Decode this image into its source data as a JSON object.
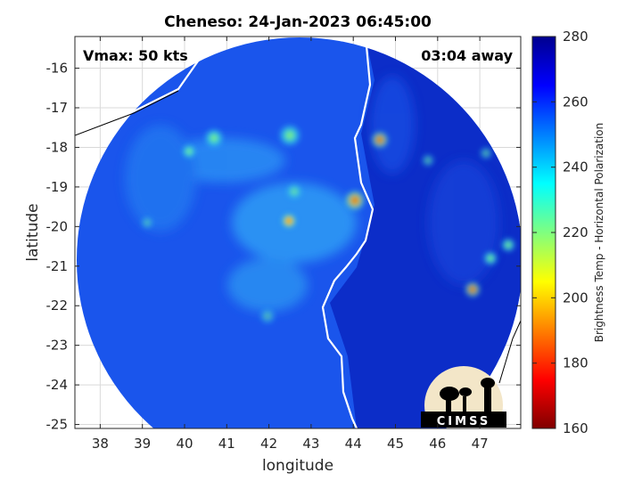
{
  "chart_data": {
    "type": "heatmap",
    "title": "Cheneso: 24-Jan-2023 06:45:00",
    "xlabel": "longitude",
    "ylabel": "latitude",
    "xlim": [
      37.4,
      47.97
    ],
    "ylim": [
      -25.1,
      -15.2
    ],
    "xticks": [
      38,
      39,
      40,
      41,
      42,
      43,
      44,
      45,
      46,
      47
    ],
    "yticks": [
      -16,
      -17,
      -18,
      -19,
      -20,
      -21,
      -22,
      -23,
      -24,
      -25
    ],
    "grid": true,
    "annotations": {
      "vmax": "Vmax: 50 kts",
      "time_away": "03:04 away"
    },
    "storm_center": {
      "lon": 42.4,
      "lat": -19.8
    },
    "colorbar": {
      "label": "Brightness Temp - Horizontal Polarization",
      "limits": [
        160,
        280
      ],
      "ticks": [
        160,
        180,
        200,
        220,
        240,
        260,
        280
      ],
      "colormap": "jet"
    }
  },
  "logo": {
    "text": "CIMSS"
  },
  "colors": {
    "background": "#ffffff",
    "coastline": "#ffffff",
    "outside_coast": "#000000",
    "grid": "#d9d9d9"
  }
}
